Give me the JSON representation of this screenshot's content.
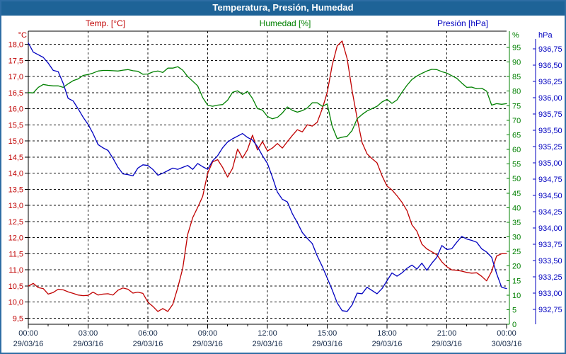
{
  "window": {
    "title": "Temperatura, Presión, Humedad"
  },
  "legend": {
    "temp_label": "Temp. [°C]",
    "humidity_label": "Humedad [%]",
    "pressure_label": "Presión [hPa]"
  },
  "colors": {
    "titlebar_bg": "#1e6397",
    "titlebar_text": "#ffffff",
    "window_border": "#2e6da4",
    "grid_line": "#111111",
    "axis_black": "#000000",
    "temp": "#c00000",
    "humidity": "#008000",
    "pressure": "#0000c0",
    "x_label": "#152a4a"
  },
  "chart_data": {
    "type": "line",
    "title": "Temperatura, Presión, Humedad",
    "x_axis": {
      "hours_start": 0,
      "hours_end": 24,
      "major_step_hours": 3,
      "minor_step_hours": 1,
      "tick_times": [
        "00:00",
        "03:00",
        "06:00",
        "09:00",
        "12:00",
        "15:00",
        "18:00",
        "21:00",
        "00:00"
      ],
      "tick_dates": [
        "29/03/16",
        "29/03/16",
        "29/03/16",
        "29/03/16",
        "29/03/16",
        "29/03/16",
        "29/03/16",
        "29/03/16",
        "30/03/16"
      ]
    },
    "axes": {
      "temperature": {
        "unit": "°C",
        "color": "#c00000",
        "min": 9.5,
        "max": 18.0,
        "step": 0.5,
        "side": "left",
        "ticks": [
          "18,0",
          "17,5",
          "17,0",
          "16,5",
          "16,0",
          "15,5",
          "15,0",
          "14,5",
          "14,0",
          "13,5",
          "13,0",
          "12,5",
          "12,0",
          "11,5",
          "11,0",
          "10,5",
          "10,0",
          "9,5"
        ]
      },
      "humidity": {
        "unit": "%",
        "color": "#008000",
        "min": 0,
        "max": 95,
        "step": 5,
        "side": "right-inner",
        "ticks": [
          "95",
          "90",
          "85",
          "80",
          "75",
          "70",
          "65",
          "60",
          "55",
          "50",
          "45",
          "40",
          "35",
          "30",
          "25",
          "20",
          "15",
          "10",
          "5",
          "0"
        ]
      },
      "pressure": {
        "unit": "hPa",
        "color": "#0000c0",
        "min": 932.75,
        "max": 936.75,
        "step": 0.25,
        "side": "right-outer",
        "ticks": [
          "936,75",
          "936,50",
          "936,25",
          "936,00",
          "935,75",
          "935,50",
          "935,25",
          "935,00",
          "934,75",
          "934,50",
          "934,25",
          "934,00",
          "933,75",
          "933,50",
          "933,25",
          "933,00",
          "932,75"
        ]
      }
    },
    "grid": {
      "v_lines_hours": [
        3,
        6,
        9,
        12,
        15,
        18,
        21
      ],
      "dash": "3 3",
      "grid_on": true
    },
    "legend_position": "top",
    "series": [
      {
        "name": "Temp. [°C]",
        "axis": "temperature",
        "color": "#c00000",
        "t_start": 0,
        "t_step": 0.25,
        "values": [
          10.5,
          10.58,
          10.45,
          10.42,
          10.25,
          10.3,
          10.4,
          10.38,
          10.32,
          10.27,
          10.22,
          10.2,
          10.21,
          10.31,
          10.22,
          10.25,
          10.26,
          10.22,
          10.37,
          10.44,
          10.4,
          10.28,
          10.31,
          10.27,
          10.0,
          9.87,
          9.71,
          9.8,
          9.71,
          9.93,
          10.45,
          11.05,
          12.1,
          12.62,
          12.94,
          13.28,
          14.0,
          14.35,
          14.42,
          14.18,
          13.88,
          14.15,
          14.75,
          14.47,
          14.73,
          15.18,
          14.72,
          14.98,
          14.69,
          14.78,
          14.92,
          14.78,
          14.98,
          15.17,
          15.35,
          15.28,
          15.5,
          15.46,
          15.58,
          16.0,
          16.5,
          17.35,
          17.95,
          18.1,
          17.55,
          16.56,
          15.7,
          14.95,
          14.6,
          14.45,
          14.32,
          13.92,
          13.6,
          13.48,
          13.3,
          13.1,
          12.84,
          12.4,
          12.2,
          11.8,
          11.65,
          11.56,
          11.47,
          11.25,
          11.1,
          11.0,
          10.99,
          10.96,
          10.92,
          10.9,
          10.91,
          10.8,
          10.66,
          10.95,
          11.43,
          11.5,
          11.5
        ]
      },
      {
        "name": "Humedad [%]",
        "axis": "humidity",
        "color": "#008000",
        "t_start": 0,
        "t_step": 0.25,
        "values": [
          79.5,
          79.4,
          81.3,
          82.3,
          82.0,
          81.8,
          81.8,
          81.3,
          82.5,
          83.6,
          84.2,
          85.4,
          85.7,
          86.2,
          86.9,
          87.1,
          87.1,
          87.0,
          86.9,
          87.2,
          87.4,
          87.0,
          86.8,
          85.8,
          85.9,
          86.6,
          86.9,
          86.4,
          87.9,
          87.9,
          88.4,
          87.2,
          85.0,
          83.4,
          81.8,
          77.8,
          75.2,
          74.8,
          75.2,
          75.4,
          76.9,
          79.6,
          80.1,
          78.9,
          79.9,
          77.5,
          74.0,
          73.5,
          71.3,
          70.5,
          71.0,
          72.5,
          74.6,
          73.4,
          72.8,
          73.3,
          74.2,
          76.0,
          76.0,
          74.8,
          75.6,
          68.0,
          63.7,
          64.2,
          64.5,
          66.5,
          70.5,
          72.0,
          73.2,
          74.0,
          74.8,
          76.3,
          77.2,
          75.8,
          77.0,
          79.6,
          82.0,
          84.0,
          85.2,
          86.1,
          86.9,
          87.5,
          87.4,
          86.7,
          86.2,
          85.3,
          84.4,
          82.8,
          81.3,
          81.4,
          80.8,
          81.0,
          80.0,
          75.2,
          75.7,
          75.5,
          75.7
        ]
      },
      {
        "name": "Presión [hPa]",
        "axis": "pressure",
        "color": "#0000c0",
        "t_start": 0,
        "t_step": 0.25,
        "values": [
          936.84,
          936.7,
          936.66,
          936.62,
          936.53,
          936.42,
          936.4,
          936.22,
          935.99,
          935.95,
          935.83,
          935.7,
          935.59,
          935.45,
          935.28,
          935.23,
          935.19,
          935.07,
          934.93,
          934.83,
          934.82,
          934.8,
          934.92,
          934.97,
          934.96,
          934.9,
          934.81,
          934.84,
          934.88,
          934.92,
          934.9,
          934.93,
          934.96,
          934.9,
          934.99,
          934.94,
          934.9,
          935.03,
          935.11,
          935.23,
          935.32,
          935.37,
          935.41,
          935.45,
          935.39,
          935.35,
          935.25,
          935.11,
          934.99,
          934.78,
          934.55,
          934.44,
          934.4,
          934.22,
          934.08,
          933.93,
          933.84,
          933.76,
          933.57,
          933.41,
          933.23,
          933.05,
          932.85,
          932.73,
          932.72,
          932.82,
          933.0,
          932.99,
          933.09,
          933.04,
          932.99,
          933.07,
          933.19,
          933.31,
          933.26,
          933.31,
          933.38,
          933.43,
          933.37,
          933.46,
          933.35,
          933.46,
          933.55,
          933.73,
          933.67,
          933.68,
          933.78,
          933.87,
          933.83,
          933.81,
          933.78,
          933.68,
          933.63,
          933.55,
          933.3,
          933.09,
          933.07
        ]
      }
    ]
  }
}
